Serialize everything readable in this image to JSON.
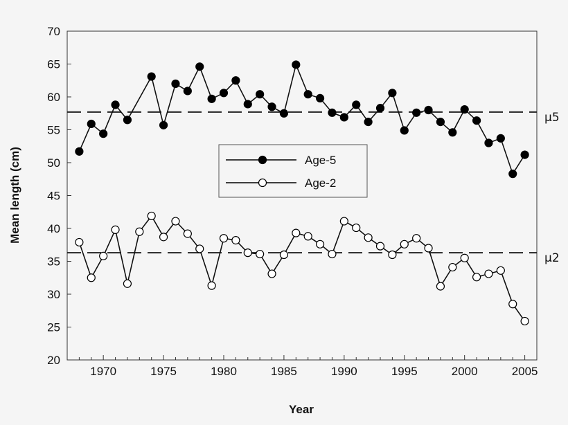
{
  "chart_data": {
    "type": "line",
    "title": "",
    "xlabel": "Year",
    "ylabel": "Mean length (cm)",
    "xlim": [
      1967,
      2006
    ],
    "ylim": [
      20,
      70
    ],
    "xticks": [
      1970,
      1975,
      1980,
      1985,
      1990,
      1995,
      2000,
      2005
    ],
    "yticks": [
      20,
      25,
      30,
      35,
      40,
      45,
      50,
      55,
      60,
      65,
      70
    ],
    "grid": false,
    "legend": "center",
    "series": [
      {
        "name": "Age-5",
        "marker": "filled-circle",
        "x": [
          1968,
          1969,
          1970,
          1971,
          1972,
          1974,
          1975,
          1976,
          1977,
          1978,
          1979,
          1980,
          1981,
          1982,
          1983,
          1984,
          1985,
          1986,
          1987,
          1988,
          1989,
          1990,
          1991,
          1992,
          1993,
          1994,
          1995,
          1996,
          1997,
          1998,
          1999,
          2000,
          2001,
          2002,
          2003,
          2004,
          2005
        ],
        "y": [
          51.7,
          55.9,
          54.4,
          58.8,
          56.5,
          63.1,
          55.7,
          62.0,
          60.9,
          64.6,
          59.7,
          60.6,
          62.5,
          58.9,
          60.4,
          58.5,
          57.5,
          64.9,
          60.4,
          59.8,
          57.6,
          56.9,
          58.8,
          56.2,
          58.3,
          60.6,
          54.9,
          57.6,
          58.0,
          56.2,
          54.6,
          58.1,
          56.4,
          53.0,
          53.7,
          48.3,
          51.2
        ]
      },
      {
        "name": "Age-2",
        "marker": "open-circle",
        "x": [
          1968,
          1969,
          1970,
          1971,
          1972,
          1973,
          1974,
          1975,
          1976,
          1977,
          1978,
          1979,
          1980,
          1981,
          1982,
          1983,
          1984,
          1985,
          1986,
          1987,
          1988,
          1989,
          1990,
          1991,
          1992,
          1993,
          1994,
          1995,
          1996,
          1997,
          1998,
          1999,
          2000,
          2001,
          2002,
          2003,
          2004,
          2005
        ],
        "y": [
          37.9,
          32.5,
          35.8,
          39.8,
          31.6,
          39.5,
          41.9,
          38.7,
          41.1,
          39.2,
          36.9,
          31.3,
          38.5,
          38.2,
          36.3,
          36.1,
          33.1,
          36.0,
          39.3,
          38.8,
          37.6,
          36.1,
          41.1,
          40.1,
          38.6,
          37.3,
          36.0,
          37.6,
          38.5,
          37.0,
          31.2,
          34.1,
          35.5,
          32.6,
          33.1,
          33.6,
          28.5,
          25.9
        ]
      }
    ],
    "reference_lines": [
      {
        "label": "μ5",
        "y": 57.7
      },
      {
        "label": "μ2",
        "y": 36.3
      }
    ]
  }
}
